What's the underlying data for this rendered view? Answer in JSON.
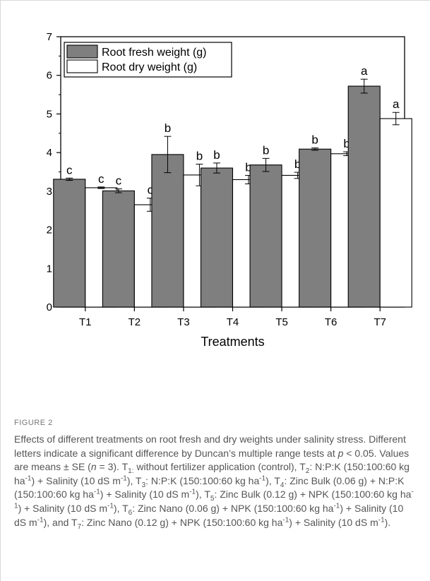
{
  "chart_data": {
    "type": "bar",
    "categories": [
      "T1",
      "T2",
      "T3",
      "T4",
      "T5",
      "T6",
      "T7"
    ],
    "series": [
      {
        "name": "Root fresh weight (g)",
        "color": "#7f7f7f",
        "values": [
          3.31,
          3.01,
          3.95,
          3.6,
          3.68,
          4.09,
          5.72
        ],
        "errors": [
          0.03,
          0.05,
          0.47,
          0.13,
          0.17,
          0.03,
          0.18
        ],
        "letters": [
          "c",
          "c",
          "b",
          "b",
          "b",
          "b",
          "a"
        ]
      },
      {
        "name": "Root dry weight (g)",
        "color": "#ffffff",
        "values": [
          3.09,
          2.65,
          3.42,
          3.3,
          3.41,
          3.97,
          4.88
        ],
        "errors": [
          0.02,
          0.17,
          0.28,
          0.11,
          0.08,
          0.05,
          0.16
        ],
        "letters": [
          "c",
          "c",
          "b",
          "b",
          "b",
          "b",
          "a"
        ]
      }
    ],
    "xlabel": "Treatments",
    "ylabel": "",
    "ylim": [
      0,
      7
    ],
    "yticks": [
      0,
      1,
      2,
      3,
      4,
      5,
      6,
      7
    ],
    "grid": false,
    "legend": "top-left"
  },
  "caption": {
    "label": "FIGURE 2",
    "parts": [
      {
        "t": "Effects of different treatments on root fresh and dry weights under salinity stress. Different letters indicate a significant difference by Duncan’s multiple range tests at "
      },
      {
        "t": "p",
        "i": true
      },
      {
        "t": " < 0.05. Values are means ± SE ("
      },
      {
        "t": "n",
        "i": true
      },
      {
        "t": " = 3). T"
      },
      {
        "t": "1:",
        "sub": true
      },
      {
        "t": " without fertilizer application (control), T"
      },
      {
        "t": "2",
        "sub": true
      },
      {
        "t": ": N:P:K (150:100:60 kg ha"
      },
      {
        "t": "-1",
        "sup": true
      },
      {
        "t": ") + Salinity (10 dS m"
      },
      {
        "t": "-1",
        "sup": true
      },
      {
        "t": "), T"
      },
      {
        "t": "3",
        "sub": true
      },
      {
        "t": ": N:P:K (150:100:60 kg ha"
      },
      {
        "t": "-1",
        "sup": true
      },
      {
        "t": "), T"
      },
      {
        "t": "4",
        "sub": true
      },
      {
        "t": ": Zinc Bulk (0.06 g) + N:P:K (150:100:60 kg ha"
      },
      {
        "t": "-1",
        "sup": true
      },
      {
        "t": ") + Salinity (10 dS m"
      },
      {
        "t": "-1",
        "sup": true
      },
      {
        "t": "), T"
      },
      {
        "t": "5",
        "sub": true
      },
      {
        "t": ": Zinc Bulk (0.12 g) + NPK (150:100:60 kg ha"
      },
      {
        "t": "-1",
        "sup": true
      },
      {
        "t": ") + Salinity (10 dS m"
      },
      {
        "t": "-1",
        "sup": true
      },
      {
        "t": "), T"
      },
      {
        "t": "6",
        "sub": true
      },
      {
        "t": ": Zinc Nano (0.06 g) + NPK (150:100:60 kg ha"
      },
      {
        "t": "-1",
        "sup": true
      },
      {
        "t": ") + Salinity (10 dS m"
      },
      {
        "t": "-1",
        "sup": true
      },
      {
        "t": "), and T"
      },
      {
        "t": "7",
        "sub": true
      },
      {
        "t": ": Zinc Nano (0.12 g) + NPK (150:100:60 kg ha"
      },
      {
        "t": "-1",
        "sup": true
      },
      {
        "t": ") + Salinity (10 dS m"
      },
      {
        "t": "-1",
        "sup": true
      },
      {
        "t": ")."
      }
    ]
  }
}
